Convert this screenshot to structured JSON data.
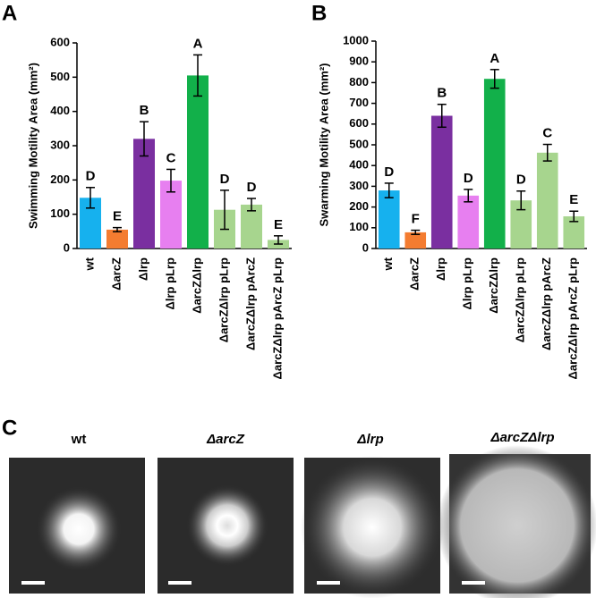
{
  "chart_data": [
    {
      "type": "bar",
      "panel": "A",
      "ylabel": "Swimming Motility Area (mm²)",
      "categories": [
        "wt",
        "ΔarcZ",
        "Δlrp",
        "Δlrp pLrp",
        "ΔarcZΔlrp",
        "ΔarcZΔlrp pLrp",
        "ΔarcZΔlrp pArcZ",
        "ΔarcZΔlrp pArcZ pLrp"
      ],
      "values": [
        148,
        55,
        320,
        198,
        505,
        113,
        128,
        25
      ],
      "errors": [
        30,
        6,
        50,
        33,
        60,
        57,
        18,
        12
      ],
      "letters": [
        "D",
        "E",
        "B",
        "C",
        "A",
        "D",
        "D",
        "E"
      ],
      "colors": [
        "#16b1ee",
        "#f47c30",
        "#7a2fa0",
        "#e77ff0",
        "#12b04a",
        "#a7d58e",
        "#a7d58e",
        "#a7d58e"
      ],
      "ylim": [
        0,
        600
      ],
      "yticks": [
        0,
        100,
        200,
        300,
        400,
        500,
        600
      ]
    },
    {
      "type": "bar",
      "panel": "B",
      "ylabel": "Swarming Motility Area (mm²)",
      "categories": [
        "wt",
        "ΔarcZ",
        "Δlrp",
        "Δlrp pLrp",
        "ΔarcZΔlrp",
        "ΔarcZΔlrp pLrp",
        "ΔarcZΔlrp pArcZ",
        "ΔarcZΔlrp pArcZ pLrp"
      ],
      "values": [
        280,
        78,
        640,
        255,
        818,
        232,
        462,
        155
      ],
      "errors": [
        35,
        10,
        55,
        30,
        45,
        45,
        40,
        25
      ],
      "letters": [
        "D",
        "F",
        "B",
        "D",
        "A",
        "D",
        "C",
        "E"
      ],
      "colors": [
        "#16b1ee",
        "#f47c30",
        "#7a2fa0",
        "#e77ff0",
        "#12b04a",
        "#a7d58e",
        "#a7d58e",
        "#a7d58e"
      ],
      "ylim": [
        0,
        1000
      ],
      "yticks": [
        0,
        100,
        200,
        300,
        400,
        500,
        600,
        700,
        800,
        900,
        1000
      ]
    }
  ],
  "panel_c": {
    "label": "C",
    "images": [
      "wt",
      "ΔarcZ",
      "Δlrp",
      "ΔarcZΔlrp"
    ]
  }
}
